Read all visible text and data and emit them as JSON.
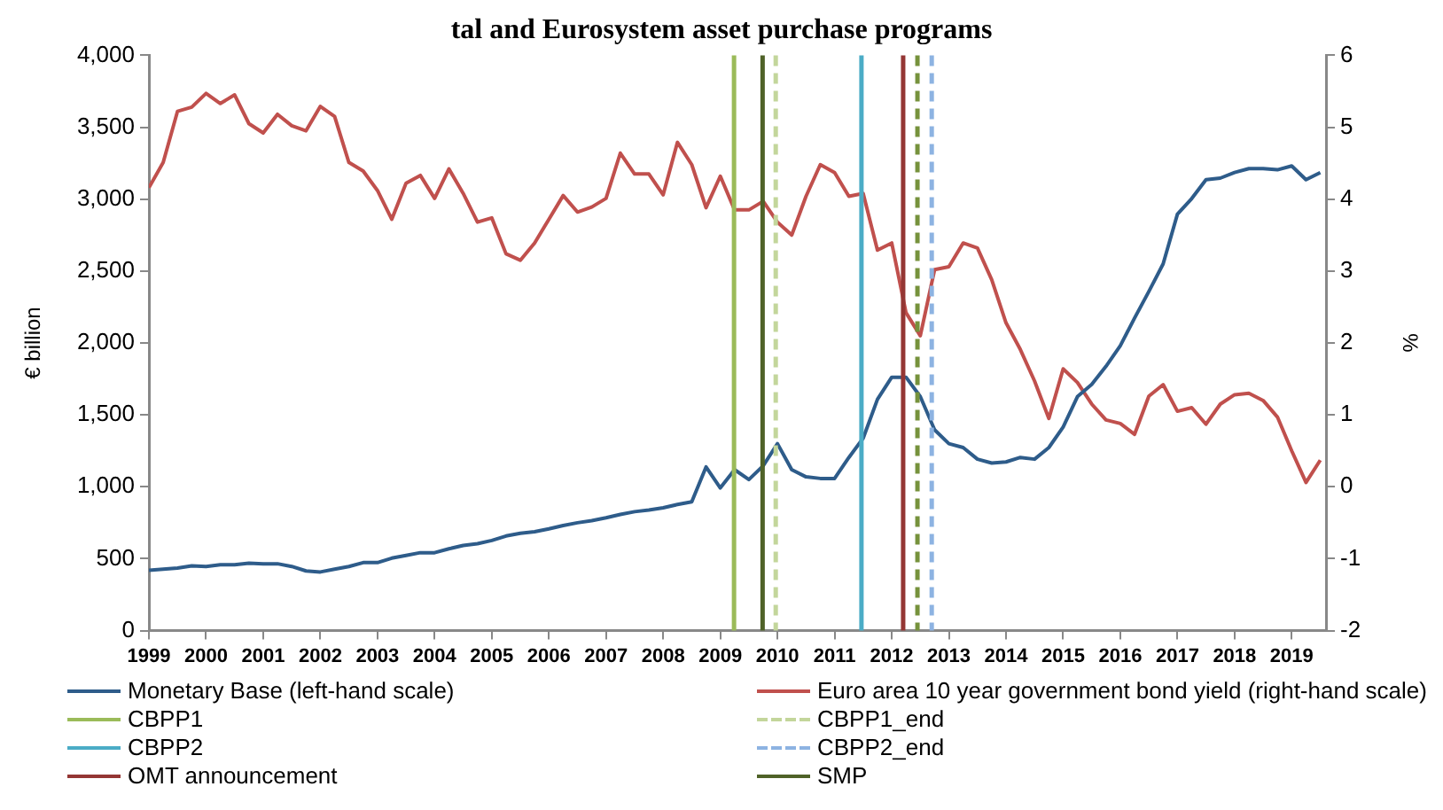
{
  "chart_data": {
    "type": "line",
    "title": "tal and Eurosystem asset purchase programs",
    "ylabel": "€ billion",
    "y2label": "%",
    "x": [
      1999,
      1999.25,
      1999.5,
      1999.75,
      2000,
      2000.25,
      2000.5,
      2000.75,
      2001,
      2001.25,
      2001.5,
      2001.75,
      2002,
      2002.25,
      2002.5,
      2002.75,
      2003,
      2003.25,
      2003.5,
      2003.75,
      2004,
      2004.25,
      2004.5,
      2004.75,
      2005,
      2005.25,
      2005.5,
      2005.75,
      2006,
      2006.25,
      2006.5,
      2006.75,
      2007,
      2007.25,
      2007.5,
      2007.75,
      2008,
      2008.25,
      2008.5,
      2008.75,
      2009,
      2009.25,
      2009.5,
      2009.75,
      2010,
      2010.25,
      2010.5,
      2010.75,
      2011,
      2011.25,
      2011.5,
      2011.75,
      2012,
      2012.25,
      2012.5,
      2012.75,
      2013,
      2013.25,
      2013.5,
      2013.75,
      2014,
      2014.25,
      2014.5,
      2014.75,
      2015,
      2015.25,
      2015.5,
      2015.75,
      2016,
      2016.25,
      2016.5,
      2016.75,
      2017,
      2017.25,
      2017.5,
      2017.75,
      2018,
      2018.25,
      2018.5,
      2018.75,
      2019,
      2019.25,
      2019.5
    ],
    "series": [
      {
        "name": "Monetary Base (left-hand scale)",
        "color": "#2e5c8a",
        "values": [
          419,
          427,
          435,
          450,
          446,
          458,
          458,
          469,
          465,
          465,
          446,
          415,
          408,
          427,
          446,
          473,
          473,
          504,
          523,
          542,
          542,
          569,
          592,
          604,
          627,
          658,
          677,
          688,
          708,
          731,
          750,
          765,
          785,
          808,
          827,
          838,
          854,
          877,
          896,
          1138,
          992,
          1119,
          1050,
          1146,
          1300,
          1119,
          1069,
          1058,
          1058,
          1204,
          1338,
          1608,
          1762,
          1762,
          1627,
          1396,
          1300,
          1273,
          1192,
          1165,
          1173,
          1204,
          1192,
          1273,
          1415,
          1627,
          1712,
          1838,
          1981,
          2173,
          2358,
          2550,
          2896,
          3004,
          3135,
          3146,
          3185,
          3212,
          3212,
          3204,
          3231,
          3135,
          3185
        ]
      },
      {
        "name": "Euro area 10 year government bond yield (right-hand scale)",
        "color": "#c0504d",
        "axis": "y2",
        "values": [
          4.16,
          4.51,
          5.22,
          5.28,
          5.47,
          5.33,
          5.45,
          5.05,
          4.92,
          5.18,
          5.02,
          4.95,
          5.29,
          5.15,
          4.51,
          4.39,
          4.12,
          3.72,
          4.22,
          4.33,
          4.01,
          4.42,
          4.08,
          3.68,
          3.74,
          3.24,
          3.15,
          3.39,
          3.72,
          4.05,
          3.82,
          3.89,
          4.01,
          4.64,
          4.35,
          4.35,
          4.06,
          4.79,
          4.48,
          3.88,
          4.32,
          3.85,
          3.85,
          3.97,
          3.68,
          3.5,
          4.04,
          4.48,
          4.37,
          4.04,
          4.08,
          3.29,
          3.39,
          2.42,
          2.1,
          3.02,
          3.06,
          3.39,
          3.32,
          2.88,
          2.28,
          1.91,
          1.47,
          0.95,
          1.64,
          1.45,
          1.15,
          0.93,
          0.88,
          0.73,
          1.26,
          1.42,
          1.05,
          1.1,
          0.87,
          1.15,
          1.28,
          1.3,
          1.2,
          0.97,
          0.5,
          0.06,
          0.37
        ]
      }
    ],
    "xlim": [
      1999,
      2019.6
    ],
    "xticks": [
      1999,
      2000,
      2001,
      2002,
      2003,
      2004,
      2005,
      2006,
      2007,
      2008,
      2009,
      2010,
      2011,
      2012,
      2013,
      2014,
      2015,
      2016,
      2017,
      2018,
      2019
    ],
    "ylim": [
      0,
      4000
    ],
    "yticks": [
      0,
      500,
      {
        "value": 1000,
        "label": "1,000"
      },
      {
        "value": 1500,
        "label": "1,500"
      },
      {
        "value": 2000,
        "label": "2,000"
      },
      {
        "value": 2500,
        "label": "2,500"
      },
      {
        "value": 3000,
        "label": "3,000"
      },
      {
        "value": 3500,
        "label": "3,500"
      },
      {
        "value": 4000,
        "label": "4,000"
      }
    ],
    "y2lim": [
      -2,
      6
    ],
    "y2ticks": [
      -2,
      -1,
      0,
      1,
      2,
      3,
      4,
      5,
      6
    ],
    "ref_lines": [
      {
        "axis": "x",
        "value": 2009.24,
        "label": "CBPP1",
        "color": "#9bbb59",
        "line_style": "solid"
      },
      {
        "axis": "x",
        "value": 2009.97,
        "label": "CBPP1_end",
        "color": "#c3d69b",
        "line_style": "dashed"
      },
      {
        "axis": "x",
        "value": 2011.47,
        "label": "CBPP2",
        "color": "#4bacc6",
        "line_style": "solid"
      },
      {
        "axis": "x",
        "value": 2012.7,
        "label": "CBPP2_end",
        "color": "#8db3e2",
        "line_style": "dashed"
      },
      {
        "axis": "x",
        "value": 2012.2,
        "label": "OMT announcement",
        "color": "#943634",
        "line_style": "solid"
      },
      {
        "axis": "x",
        "value": 2009.74,
        "label": "SMP",
        "color": "#4f6228",
        "line_style": "solid"
      },
      {
        "axis": "x",
        "value": 2012.45,
        "color": "#76923c",
        "line_style": "dashed"
      }
    ],
    "grid": false,
    "legend": "bottom",
    "marker": "none",
    "line_style": "solid"
  }
}
